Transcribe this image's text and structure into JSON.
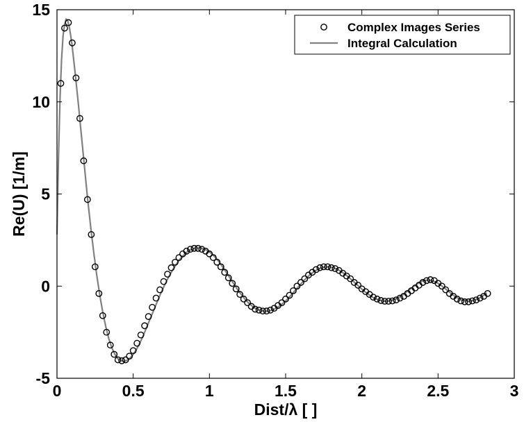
{
  "chart_data": {
    "type": "line",
    "xlabel": "Dist/λ [ ]",
    "ylabel": "Re(U) [1/m]",
    "xlim": [
      0,
      3
    ],
    "ylim": [
      -5,
      15
    ],
    "x_ticks": [
      "0",
      "0.5",
      "1",
      "1.5",
      "2",
      "2.5",
      "3"
    ],
    "y_ticks": [
      "-5",
      "0",
      "5",
      "10",
      "15"
    ],
    "grid": false,
    "legend_position": "top-right",
    "series": [
      {
        "name": "Complex Images Series",
        "style": "markers",
        "marker": "circle",
        "color": "#000000",
        "x": [
          0.025,
          0.05,
          0.075,
          0.1,
          0.125,
          0.15,
          0.175,
          0.2,
          0.225,
          0.25,
          0.275,
          0.3,
          0.325,
          0.35,
          0.375,
          0.4,
          0.425,
          0.45,
          0.475,
          0.5,
          0.525,
          0.55,
          0.575,
          0.6,
          0.625,
          0.65,
          0.675,
          0.7,
          0.725,
          0.75,
          0.775,
          0.8,
          0.825,
          0.85,
          0.875,
          0.9,
          0.925,
          0.95,
          0.975,
          1.0,
          1.025,
          1.05,
          1.075,
          1.1,
          1.125,
          1.15,
          1.175,
          1.2,
          1.225,
          1.25,
          1.275,
          1.3,
          1.325,
          1.35,
          1.375,
          1.4,
          1.425,
          1.45,
          1.475,
          1.5,
          1.525,
          1.55,
          1.575,
          1.6,
          1.625,
          1.65,
          1.675,
          1.7,
          1.725,
          1.75,
          1.775,
          1.8,
          1.825,
          1.85,
          1.875,
          1.9,
          1.925,
          1.95,
          1.975,
          2.0,
          2.025,
          2.05,
          2.075,
          2.1,
          2.125,
          2.15,
          2.175,
          2.2,
          2.225,
          2.25,
          2.275,
          2.3,
          2.325,
          2.35,
          2.375,
          2.4,
          2.425,
          2.45,
          2.475,
          2.5,
          2.525,
          2.55,
          2.575,
          2.6,
          2.625,
          2.65,
          2.675,
          2.7,
          2.725,
          2.75,
          2.775,
          2.8,
          2.825
        ],
        "y": [
          11.0,
          14.0,
          14.3,
          13.2,
          11.3,
          9.1,
          6.8,
          4.7,
          2.8,
          1.05,
          -0.4,
          -1.6,
          -2.5,
          -3.2,
          -3.7,
          -4.0,
          -4.05,
          -4.0,
          -3.8,
          -3.5,
          -3.1,
          -2.65,
          -2.15,
          -1.65,
          -1.15,
          -0.65,
          -0.2,
          0.25,
          0.65,
          1.0,
          1.3,
          1.55,
          1.75,
          1.9,
          2.0,
          2.05,
          2.05,
          2.0,
          1.9,
          1.75,
          1.55,
          1.3,
          1.05,
          0.75,
          0.45,
          0.15,
          -0.15,
          -0.45,
          -0.7,
          -0.9,
          -1.1,
          -1.25,
          -1.3,
          -1.35,
          -1.35,
          -1.3,
          -1.2,
          -1.05,
          -0.9,
          -0.7,
          -0.5,
          -0.25,
          0.0,
          0.2,
          0.4,
          0.6,
          0.75,
          0.9,
          1.0,
          1.05,
          1.05,
          1.0,
          0.95,
          0.85,
          0.7,
          0.55,
          0.4,
          0.2,
          0.05,
          -0.15,
          -0.3,
          -0.45,
          -0.6,
          -0.7,
          -0.78,
          -0.82,
          -0.82,
          -0.8,
          -0.75,
          -0.65,
          -0.55,
          -0.4,
          -0.25,
          -0.1,
          0.05,
          0.2,
          0.3,
          0.35,
          0.3,
          0.15,
          0.0,
          -0.2,
          -0.4,
          -0.55,
          -0.7,
          -0.8,
          -0.85,
          -0.85,
          -0.8,
          -0.75,
          -0.65,
          -0.55,
          -0.4
        ]
      },
      {
        "name": "Integral Calculation",
        "style": "line",
        "color": "#808080",
        "x": [
          0.0,
          0.01,
          0.02,
          0.03,
          0.04,
          0.05,
          0.06,
          0.07,
          0.08,
          0.09,
          0.1,
          0.12,
          0.14,
          0.16,
          0.18,
          0.2,
          0.22,
          0.24,
          0.26,
          0.28,
          0.3,
          0.32,
          0.34,
          0.36,
          0.38,
          0.4,
          0.42,
          0.44,
          0.46,
          0.48,
          0.5,
          0.52,
          0.54,
          0.56,
          0.58,
          0.6,
          0.62,
          0.64,
          0.66,
          0.68,
          0.7,
          0.72,
          0.74,
          0.76,
          0.78,
          0.8,
          0.82,
          0.84,
          0.86,
          0.88,
          0.9,
          0.92,
          0.94,
          0.96,
          0.98,
          1.0,
          1.02,
          1.04,
          1.06,
          1.08,
          1.1,
          1.12,
          1.14,
          1.16,
          1.18,
          1.2,
          1.22,
          1.24,
          1.26,
          1.28,
          1.3,
          1.32,
          1.34,
          1.36,
          1.38,
          1.4,
          1.42,
          1.44,
          1.46,
          1.48,
          1.5,
          1.52,
          1.54,
          1.56,
          1.58,
          1.6,
          1.62,
          1.64,
          1.66,
          1.68,
          1.7,
          1.72,
          1.74,
          1.76,
          1.78,
          1.8,
          1.82,
          1.84,
          1.86,
          1.88,
          1.9,
          1.92,
          1.94,
          1.96,
          1.98,
          2.0,
          2.02,
          2.04,
          2.06,
          2.08,
          2.1,
          2.12,
          2.14,
          2.16,
          2.18,
          2.2,
          2.22,
          2.24,
          2.26,
          2.28,
          2.3,
          2.32,
          2.34,
          2.36,
          2.38,
          2.4,
          2.42,
          2.44,
          2.46,
          2.48,
          2.5,
          2.52,
          2.54,
          2.56,
          2.58,
          2.6,
          2.62,
          2.64,
          2.66,
          2.68,
          2.7,
          2.72,
          2.74,
          2.76,
          2.78,
          2.8,
          2.82
        ],
        "y": [
          2.8,
          7.0,
          10.2,
          12.3,
          13.6,
          14.2,
          14.5,
          14.4,
          14.1,
          13.6,
          13.0,
          11.5,
          9.9,
          8.2,
          6.5,
          4.8,
          3.3,
          1.9,
          0.65,
          -0.45,
          -1.4,
          -2.2,
          -2.85,
          -3.35,
          -3.7,
          -3.95,
          -4.05,
          -4.08,
          -4.02,
          -3.9,
          -3.7,
          -3.45,
          -3.15,
          -2.8,
          -2.4,
          -2.0,
          -1.6,
          -1.2,
          -0.8,
          -0.4,
          -0.05,
          0.3,
          0.6,
          0.9,
          1.15,
          1.4,
          1.6,
          1.75,
          1.9,
          1.98,
          2.05,
          2.07,
          2.07,
          2.03,
          1.96,
          1.86,
          1.72,
          1.55,
          1.35,
          1.12,
          0.88,
          0.63,
          0.38,
          0.12,
          -0.12,
          -0.36,
          -0.57,
          -0.77,
          -0.94,
          -1.08,
          -1.19,
          -1.28,
          -1.33,
          -1.36,
          -1.36,
          -1.33,
          -1.27,
          -1.19,
          -1.08,
          -0.95,
          -0.8,
          -0.63,
          -0.45,
          -0.26,
          -0.07,
          0.12,
          0.3,
          0.47,
          0.62,
          0.75,
          0.86,
          0.95,
          1.01,
          1.04,
          1.05,
          1.03,
          0.98,
          0.91,
          0.82,
          0.71,
          0.58,
          0.44,
          0.29,
          0.14,
          -0.01,
          -0.16,
          -0.3,
          -0.43,
          -0.55,
          -0.65,
          -0.72,
          -0.78,
          -0.81,
          -0.82,
          -0.8,
          -0.76,
          -0.7,
          -0.62,
          -0.52,
          -0.4,
          -0.27,
          -0.14,
          -0.02,
          0.1,
          0.21,
          0.28,
          0.32,
          0.33,
          0.3,
          0.24,
          0.15,
          0.04,
          -0.09,
          -0.22,
          -0.36,
          -0.49,
          -0.6,
          -0.69,
          -0.76,
          -0.8,
          -0.82,
          -0.8,
          -0.76,
          -0.69,
          -0.6,
          -0.49,
          -0.36
        ]
      }
    ]
  }
}
